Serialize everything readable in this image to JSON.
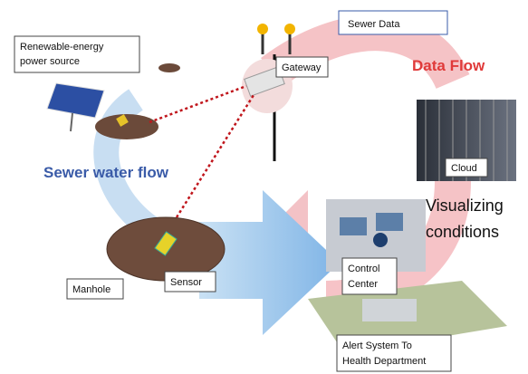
{
  "labels": {
    "power_source": [
      "Renewable-energy",
      "power source"
    ],
    "gateway": "Gateway",
    "sewer_data": "Sewer Data",
    "data_flow": "Data Flow",
    "sewer_water_flow": "Sewer water flow",
    "cloud": "Cloud",
    "visualizing": [
      "Visualizing",
      "conditions"
    ],
    "manhole": "Manhole",
    "sensor": "Sensor",
    "control_center": [
      "Control",
      "Center"
    ],
    "alert_system": [
      "Alert System To",
      "Health Department"
    ]
  }
}
